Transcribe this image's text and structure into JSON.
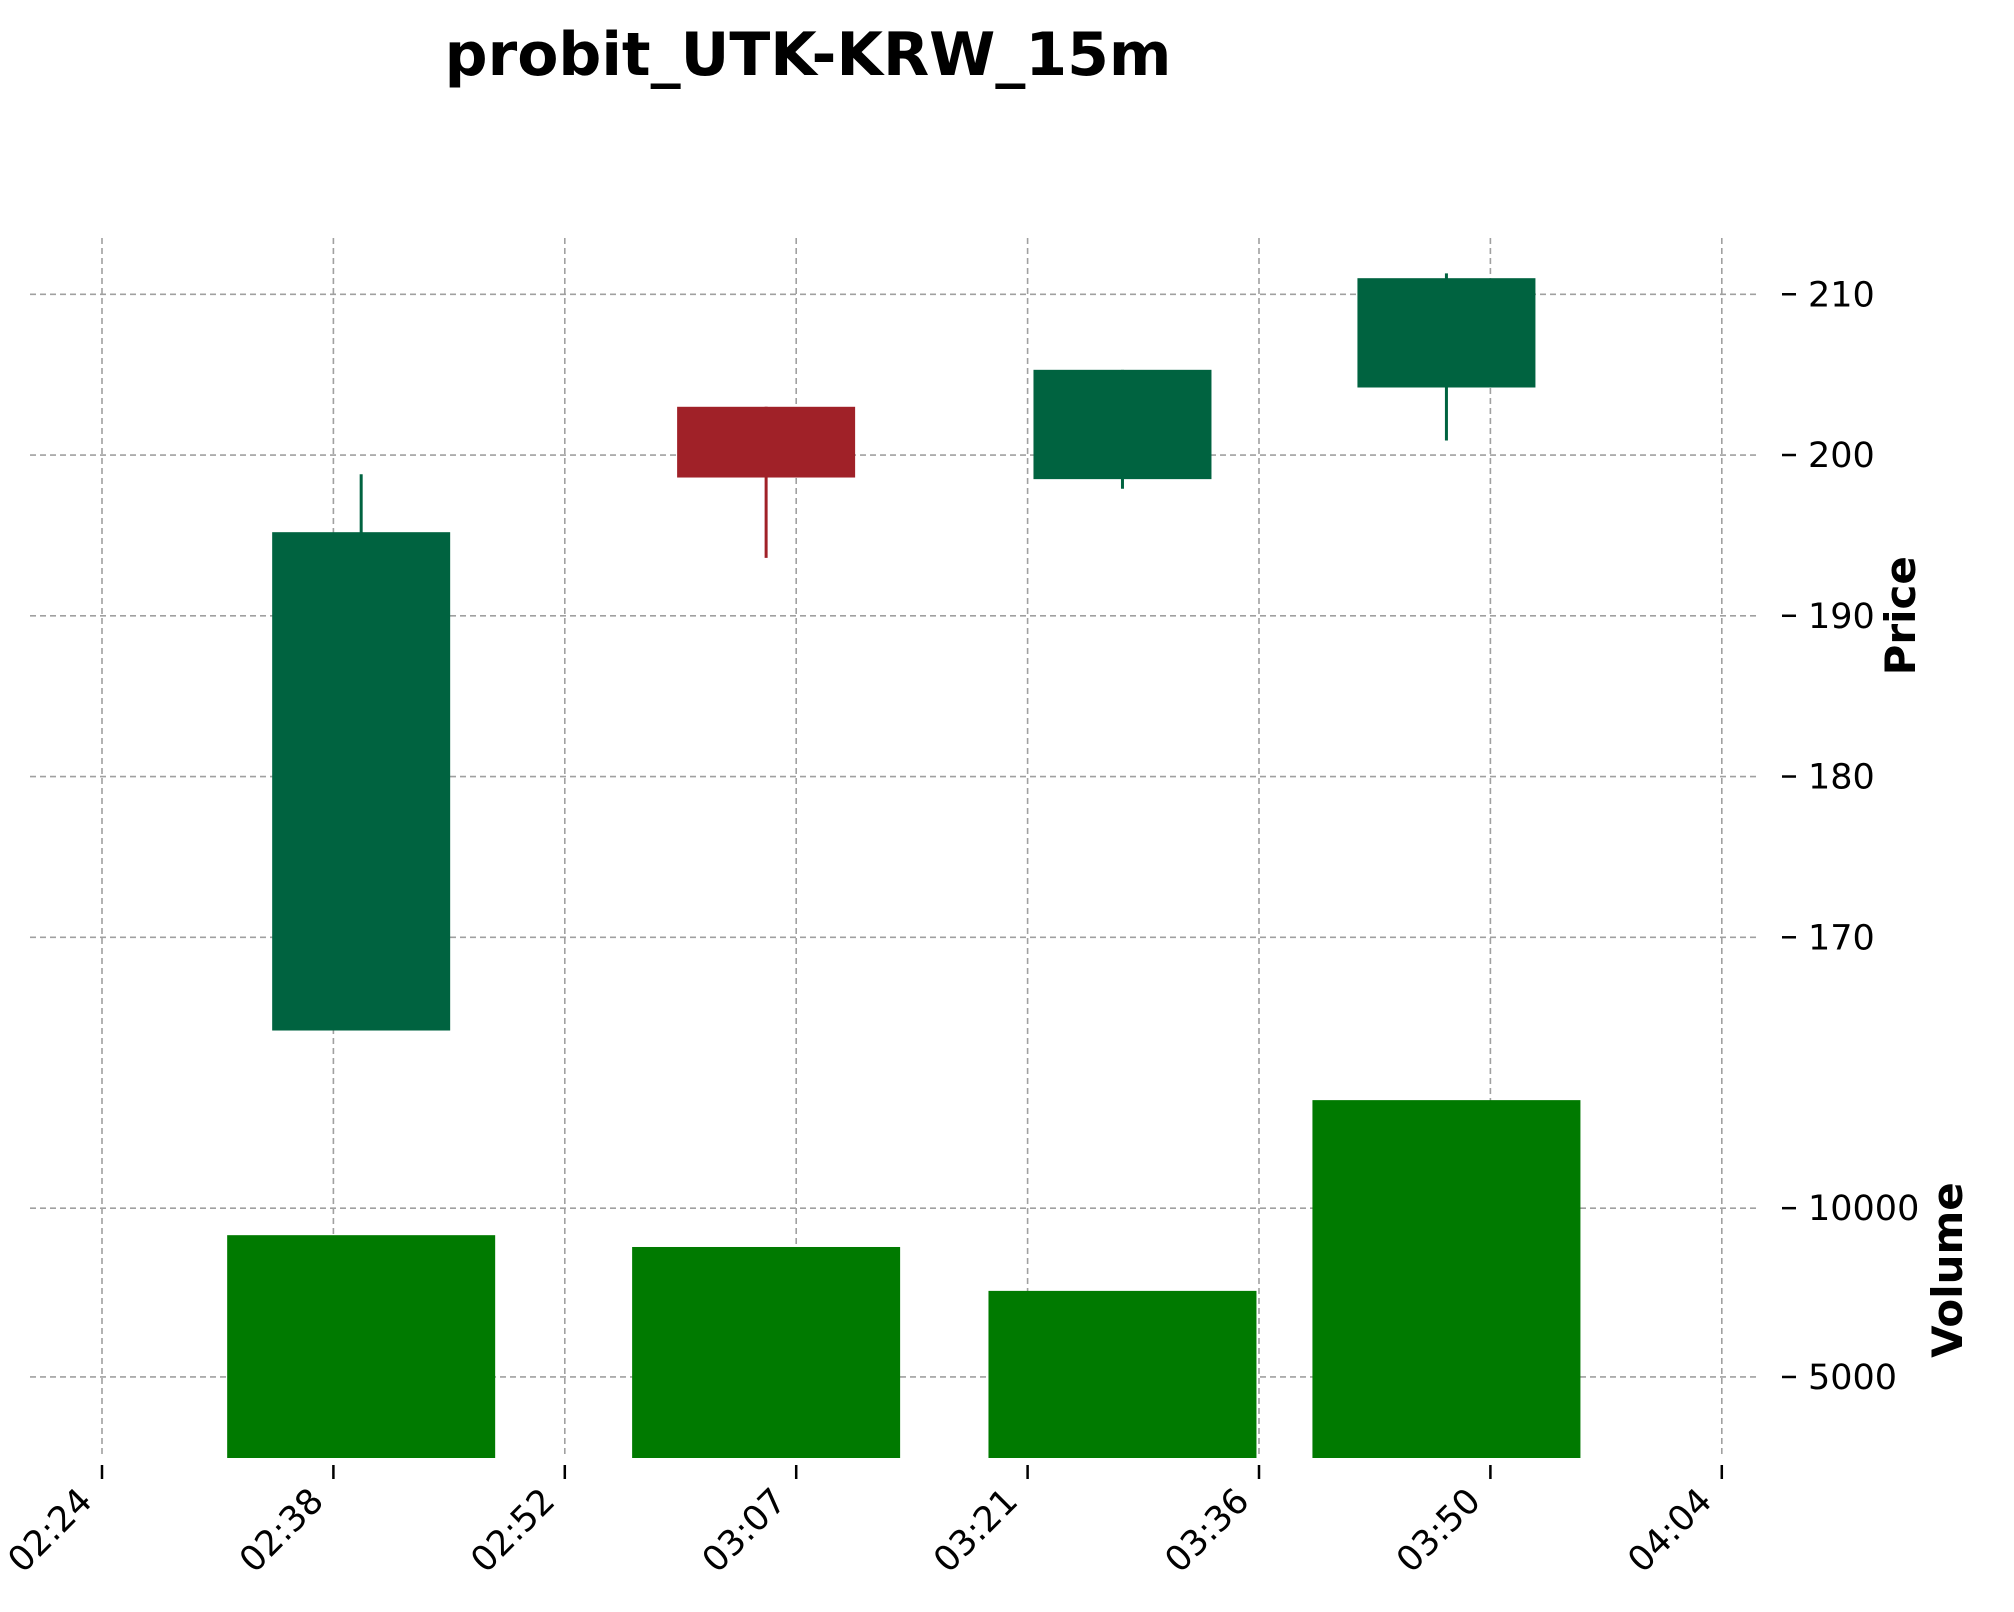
{
  "chart_data": {
    "type": "candlestick",
    "title": "probit_UTK-KRW_15m",
    "xtick_labels": [
      "02:24",
      "02:38",
      "02:52",
      "03:07",
      "03:21",
      "03:36",
      "03:50",
      "04:04"
    ],
    "price_panel": {
      "ylabel": "Price",
      "yticks": [
        170,
        180,
        190,
        200,
        210
      ],
      "ylim": [
        160.5,
        213.5
      ]
    },
    "volume_panel": {
      "ylabel": "Volume",
      "yticks": [
        5000,
        10000
      ],
      "ylim": [
        2600,
        13500
      ]
    },
    "candles": [
      {
        "time": "02:40",
        "open": 164.2,
        "high": 198.8,
        "low": 164.2,
        "close": 195.2,
        "volume": 9200,
        "direction": "up"
      },
      {
        "time": "03:05",
        "open": 203.0,
        "high": 203.0,
        "low": 193.6,
        "close": 198.6,
        "volume": 8850,
        "direction": "down"
      },
      {
        "time": "03:27",
        "open": 198.5,
        "high": 205.3,
        "low": 197.9,
        "close": 205.3,
        "volume": 7550,
        "direction": "up"
      },
      {
        "time": "03:47",
        "open": 204.2,
        "high": 211.3,
        "low": 200.9,
        "close": 211.0,
        "volume": 13200,
        "direction": "up"
      }
    ],
    "colors": {
      "up": "#006340",
      "down": "#a02128",
      "volume": "#007a00",
      "grid": "#a0a0a0"
    },
    "grid": true,
    "axis_side": "right"
  }
}
